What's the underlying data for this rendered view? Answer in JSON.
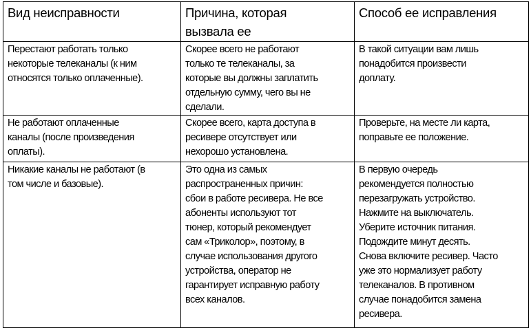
{
  "table": {
    "header": [
      [
        "Вид неисправности"
      ],
      [
        "Причина, которая",
        "вызвала ее"
      ],
      [
        "Способ ее исправления"
      ]
    ],
    "rows": [
      [
        [
          "Перестают работать только",
          "некоторые телеканалы (к ним",
          "относятся только оплаченные)."
        ],
        [
          "Скорее всего не работают",
          "только те телеканалы, за",
          "которые вы должны заплатить",
          "отдельную сумму, чего вы не",
          "сделали."
        ],
        [
          "В такой ситуации вам лишь",
          "понадобится произвести",
          "доплату."
        ]
      ],
      [
        [
          "Не работают оплаченные",
          "каналы (после произведения",
          "оплаты)."
        ],
        [
          "Скорее всего, карта доступа в",
          "ресивере отсутствует или",
          "нехорошо установлена."
        ],
        [
          "Проверьте, на месте ли карта,",
          "поправьте ее положение."
        ]
      ],
      [
        [
          "Никакие каналы не работают (в",
          "том числе и базовые)."
        ],
        [
          "Это одна из самых",
          "распространенных причин:",
          "сбои в работе ресивера. Не все",
          "абоненты используют тот",
          "тюнер, который рекомендует",
          "сам «Триколор», поэтому, в",
          "случае использования другого",
          "устройства, оператор не",
          "гарантирует исправную работу",
          "всех каналов."
        ],
        [
          "В первую очередь",
          "рекомендуется полностью",
          "перезагружать устройство.",
          "Нажмите на выключатель.",
          "Уберите источник питания.",
          "Подождите минут десять.",
          "Снова включите ресивер. Часто",
          "уже это нормализует работу",
          "телеканалов. В противном",
          "случае понадобится замена",
          "ресивера."
        ]
      ]
    ]
  }
}
